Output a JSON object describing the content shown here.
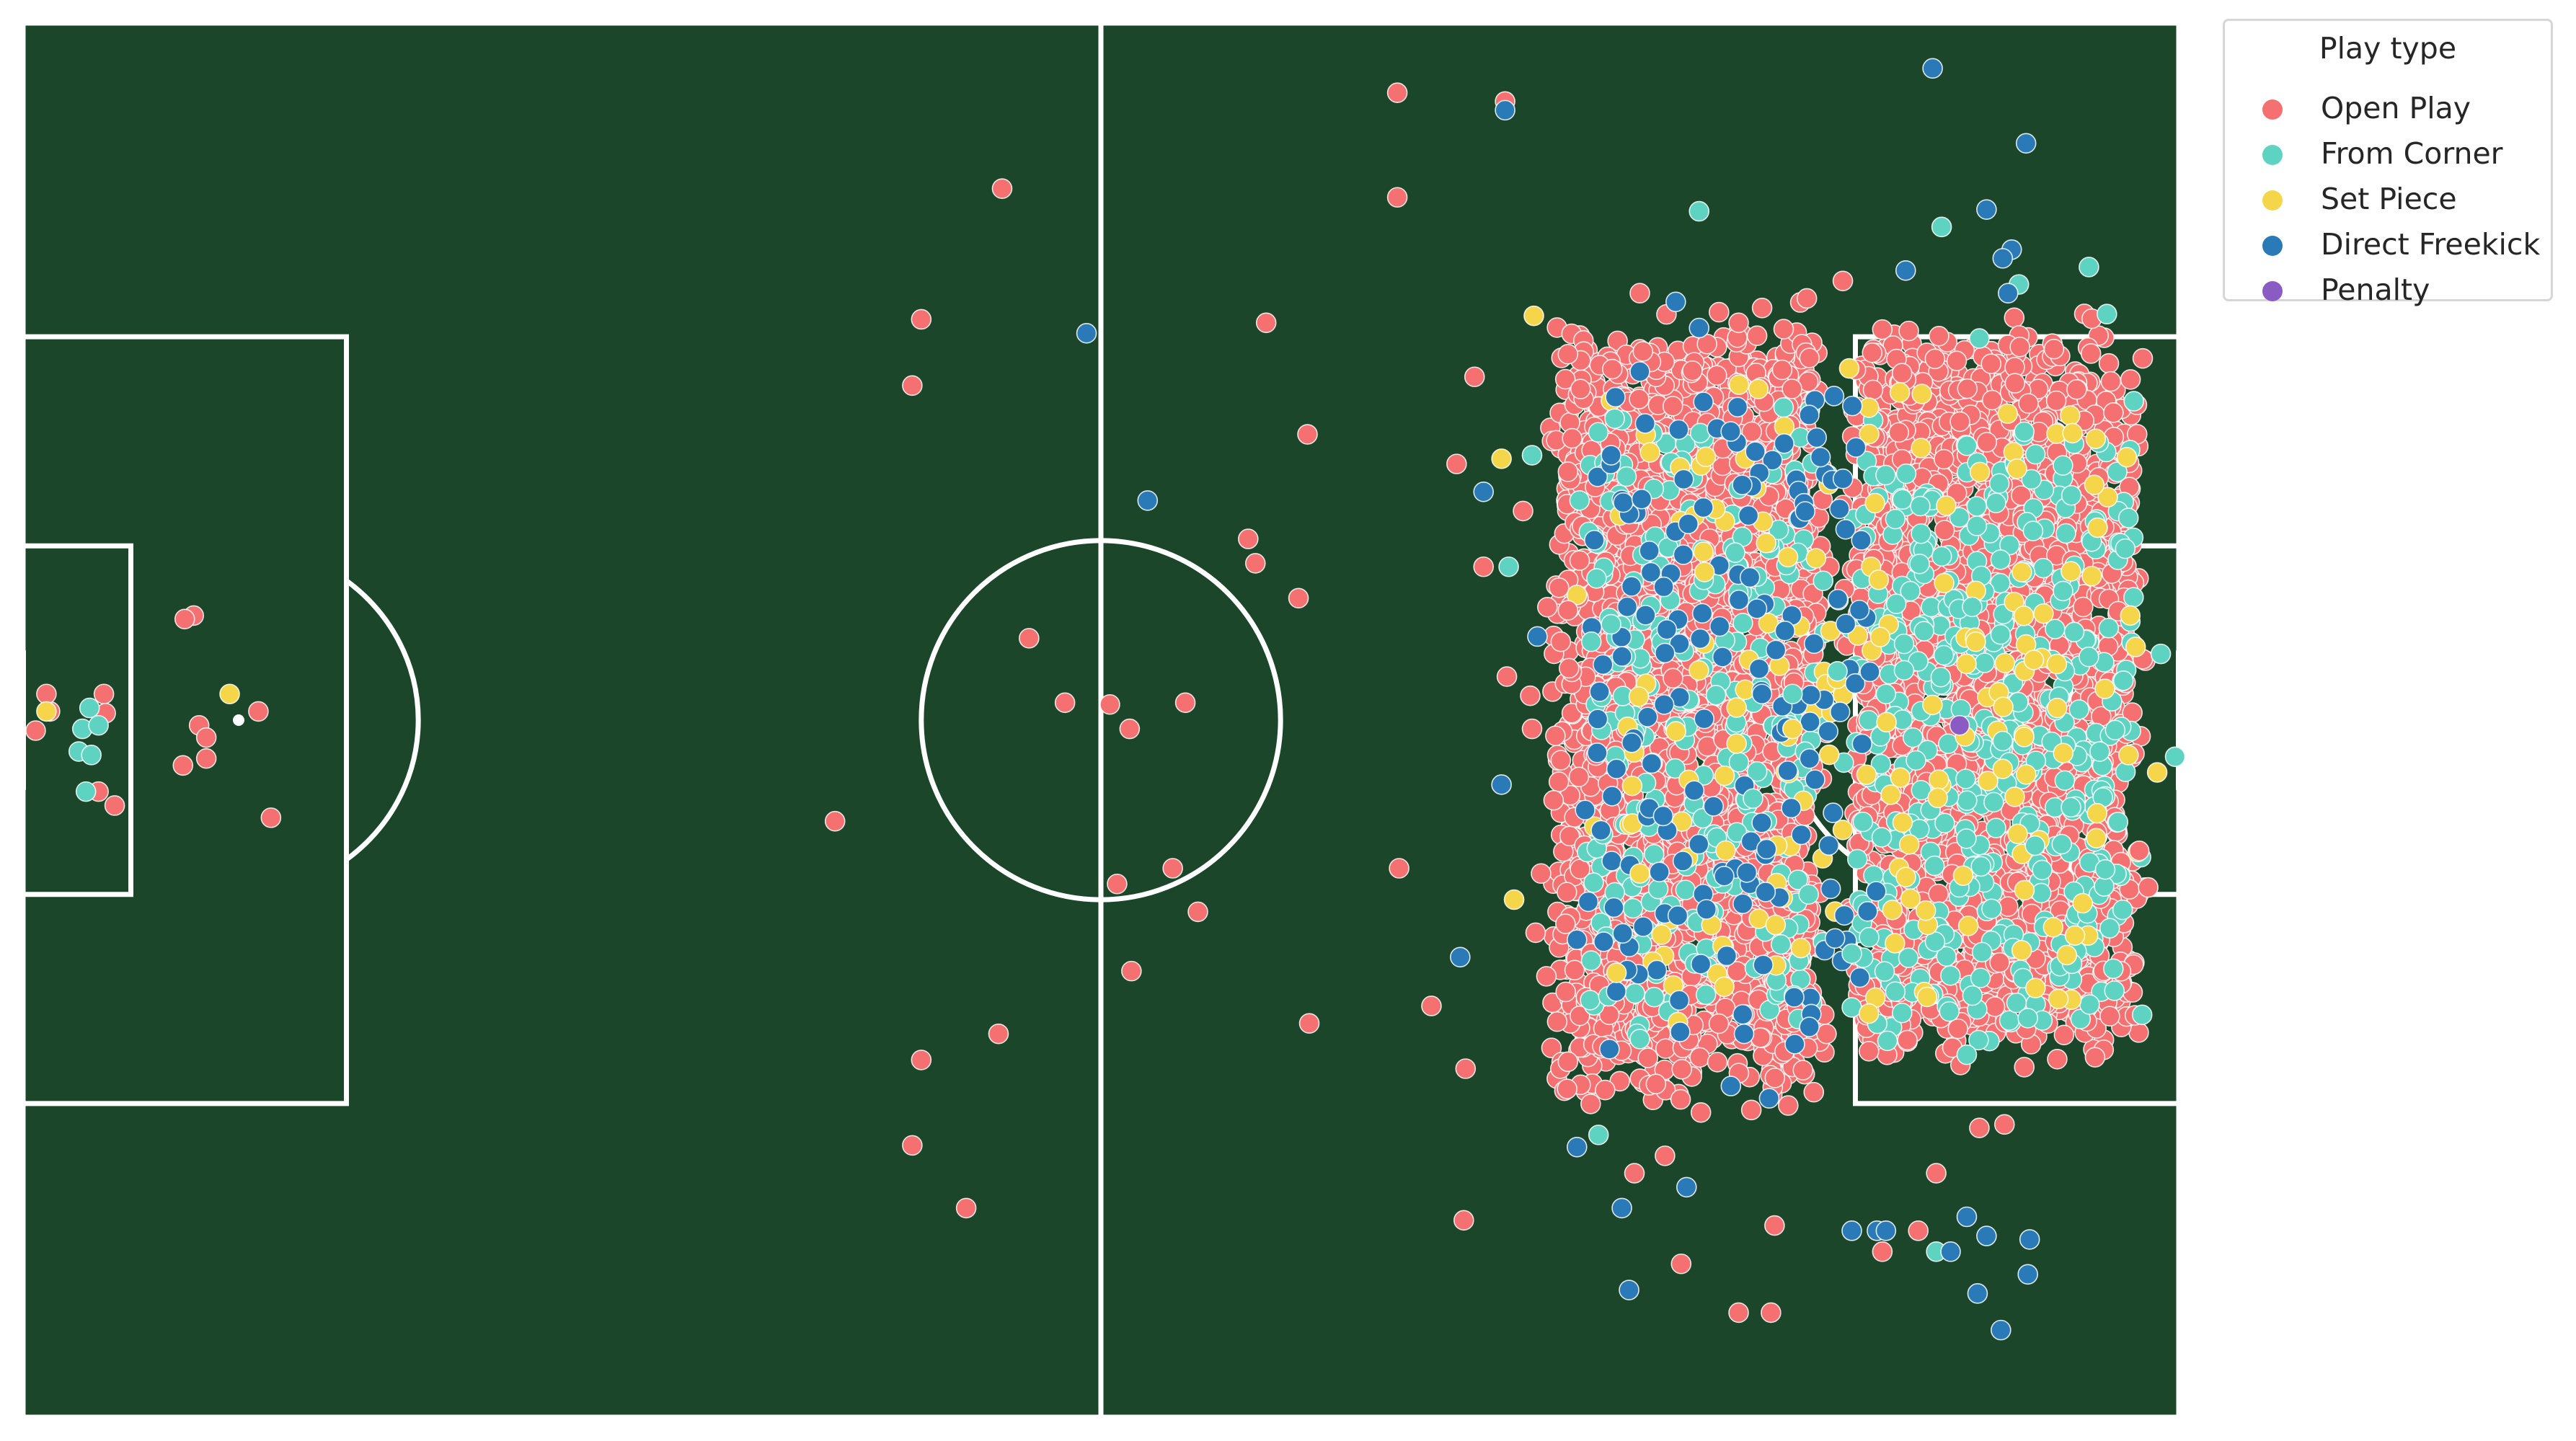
{
  "chart_data": {
    "type": "scatter",
    "pitch": {
      "length": 120,
      "width": 80,
      "background": "#1b4629",
      "line_color": "#ffffff"
    },
    "legend": {
      "title": "Play type",
      "placement": "right-outside-top"
    },
    "series": [
      {
        "name": "Open Play",
        "color": "#f57070",
        "approx_points": 5000
      },
      {
        "name": "From Corner",
        "color": "#5ed3c2",
        "approx_points": 700
      },
      {
        "name": "Set Piece",
        "color": "#f5d54a",
        "approx_points": 200
      },
      {
        "name": "Direct Freekick",
        "color": "#2b7ab8",
        "approx_points": 220
      },
      {
        "name": "Penalty",
        "color": "#8a5bc3",
        "approx_points": 1
      }
    ],
    "points": {
      "Open Play": [
        [
          76.5,
          4
        ],
        [
          76.5,
          10
        ],
        [
          82.5,
          4.5
        ],
        [
          69.2,
          17.2
        ],
        [
          71.5,
          23.6
        ],
        [
          68.2,
          29.6
        ],
        [
          68.6,
          31
        ],
        [
          71,
          33
        ],
        [
          54.5,
          9.5
        ],
        [
          50,
          17
        ],
        [
          49.5,
          20.8
        ],
        [
          56,
          35.3
        ],
        [
          58,
          39
        ],
        [
          61.6,
          40.5
        ],
        [
          64.7,
          39
        ],
        [
          60.5,
          39.1
        ],
        [
          45.2,
          45.8
        ],
        [
          54.3,
          58
        ],
        [
          60.9,
          49.4
        ],
        [
          61.7,
          54.4
        ],
        [
          64,
          48.5
        ],
        [
          65.4,
          51
        ],
        [
          71.6,
          57.4
        ],
        [
          50,
          59.5
        ],
        [
          49.5,
          64.4
        ],
        [
          52.5,
          68
        ],
        [
          76.6,
          48.5
        ],
        [
          78.4,
          56.4
        ],
        [
          80.3,
          60
        ],
        [
          80.2,
          68.7
        ],
        [
          79.8,
          25.3
        ],
        [
          80.8,
          20.3
        ],
        [
          81.3,
          31.2
        ],
        [
          83.5,
          28
        ],
        [
          86,
          19
        ],
        [
          86.7,
          21
        ],
        [
          82.6,
          37.5
        ],
        [
          84,
          40.5
        ],
        [
          91.4,
          65
        ],
        [
          95.5,
          74
        ],
        [
          92.3,
          71.2
        ],
        [
          89.7,
          66
        ],
        [
          97.5,
          69
        ],
        [
          97.3,
          74
        ],
        [
          105.5,
          69.3
        ],
        [
          103.5,
          70.5
        ],
        [
          106.5,
          66
        ],
        [
          90,
          15.5
        ],
        [
          95.5,
          17.2
        ],
        [
          99.3,
          15.8
        ],
        [
          101.3,
          14.8
        ],
        [
          108.9,
          63.4
        ],
        [
          110.3,
          63.2
        ],
        [
          117.8,
          47.5
        ],
        [
          118.3,
          49.6
        ],
        [
          118,
          36.5
        ],
        [
          1.5,
          39.5
        ],
        [
          0.7,
          40.6
        ],
        [
          1.3,
          38.5
        ],
        [
          4.5,
          38.5
        ],
        [
          4.6,
          39.6
        ],
        [
          4.2,
          44.1
        ],
        [
          5.1,
          44.9
        ],
        [
          9.5,
          34
        ],
        [
          9,
          34.2
        ],
        [
          9.8,
          40.3
        ],
        [
          10.2,
          41
        ],
        [
          10.2,
          42.2
        ],
        [
          8.9,
          42.6
        ],
        [
          13.1,
          39.5
        ],
        [
          13.8,
          45.6
        ],
        [
          85.5,
          32.4
        ],
        [
          85.6,
          35.5
        ],
        [
          85.3,
          40.9
        ],
        [
          85.6,
          42.3
        ],
        [
          85.2,
          44.6
        ],
        [
          84.5,
          48.8
        ],
        [
          84.2,
          52.2
        ],
        [
          84.8,
          54.7
        ],
        [
          85.4,
          57.3
        ],
        [
          86,
          59.6
        ],
        [
          86,
          33.7
        ],
        [
          83.9,
          38.6
        ]
      ],
      "From Corner": [
        [
          93.3,
          10.8
        ],
        [
          106.8,
          11.7
        ],
        [
          108.9,
          18.1
        ],
        [
          111.1,
          15
        ],
        [
          115,
          14
        ],
        [
          116,
          16.7
        ],
        [
          117.5,
          21.7
        ],
        [
          117.2,
          28.4
        ],
        [
          119,
          36.2
        ],
        [
          119.8,
          42.1
        ],
        [
          115.6,
          41.8
        ],
        [
          112.4,
          48.6
        ],
        [
          110.2,
          41.2
        ],
        [
          106.5,
          70.5
        ],
        [
          90,
          58.3
        ],
        [
          87.7,
          63.8
        ],
        [
          84,
          24.8
        ],
        [
          82.7,
          31.2
        ],
        [
          89,
          22.8
        ],
        [
          88.6,
          22.7
        ],
        [
          87.3,
          35.5
        ],
        [
          88.4,
          34.5
        ],
        [
          3.7,
          39.3
        ],
        [
          3.3,
          40.5
        ],
        [
          4.2,
          40.3
        ],
        [
          3.1,
          41.8
        ],
        [
          3.8,
          42
        ],
        [
          3.5,
          44.1
        ],
        [
          98.5,
          38.5
        ],
        [
          101,
          37.2
        ],
        [
          103.7,
          38.5
        ],
        [
          105.2,
          41
        ],
        [
          108.5,
          33.5
        ],
        [
          112,
          47.2
        ],
        [
          114,
          45
        ],
        [
          96.3,
          44.5
        ],
        [
          99.4,
          50
        ],
        [
          101.8,
          53.4
        ],
        [
          104.6,
          56.8
        ],
        [
          108.2,
          59.2
        ],
        [
          111.6,
          57.1
        ]
      ],
      "Set Piece": [
        [
          84.1,
          16.8
        ],
        [
          82.3,
          25
        ],
        [
          83,
          50.3
        ],
        [
          11.5,
          38.5
        ],
        [
          1.3,
          39.5
        ],
        [
          108.7,
          35.5
        ],
        [
          110.2,
          42.8
        ],
        [
          117.3,
          34
        ],
        [
          117.6,
          35.8
        ],
        [
          115.3,
          26.5
        ],
        [
          98.5,
          40.5
        ],
        [
          101.3,
          46.3
        ],
        [
          93.6,
          31.5
        ],
        [
          96.6,
          21
        ],
        [
          104.2,
          52.8
        ],
        [
          90,
          48.8
        ],
        [
          94.7,
          55.3
        ],
        [
          88.7,
          54.5
        ],
        [
          113.3,
          56
        ],
        [
          118.8,
          43
        ]
      ],
      "Direct Freekick": [
        [
          82.5,
          5
        ],
        [
          106.3,
          2.6
        ],
        [
          111.5,
          6.9
        ],
        [
          109.3,
          10.7
        ],
        [
          110.7,
          13
        ],
        [
          110.2,
          13.5
        ],
        [
          104.8,
          14.2
        ],
        [
          110.5,
          15.5
        ],
        [
          92,
          16
        ],
        [
          93.3,
          17.5
        ],
        [
          59.2,
          17.8
        ],
        [
          62.6,
          27.4
        ],
        [
          81.3,
          26.9
        ],
        [
          82.3,
          43.7
        ],
        [
          80,
          53.6
        ],
        [
          88.4,
          24.8
        ],
        [
          90,
          20
        ],
        [
          84.3,
          35.2
        ],
        [
          86.5,
          52.6
        ],
        [
          86.5,
          64.5
        ],
        [
          89,
          68
        ],
        [
          92.6,
          66.8
        ],
        [
          101.8,
          69.3
        ],
        [
          103.2,
          69.3
        ],
        [
          103.7,
          69.3
        ],
        [
          109.3,
          69.6
        ],
        [
          108.2,
          68.5
        ],
        [
          111.7,
          69.8
        ],
        [
          111.6,
          71.8
        ],
        [
          107.3,
          70.5
        ],
        [
          108.8,
          72.9
        ],
        [
          89.4,
          72.7
        ],
        [
          110.1,
          75
        ],
        [
          95.7,
          26.5
        ],
        [
          91.5,
          34.8
        ],
        [
          89.3,
          33.5
        ],
        [
          96.8,
          38.5
        ],
        [
          88.7,
          42.8
        ],
        [
          91.3,
          45.5
        ],
        [
          93.4,
          54
        ],
        [
          95.8,
          58
        ],
        [
          97.2,
          61.7
        ]
      ],
      "Penalty": [
        [
          107.8,
          40.3
        ]
      ]
    },
    "clusters": [
      {
        "series": "Open Play",
        "count": 2400,
        "x_range": [
          84.5,
          101
        ],
        "y_range": [
          15.5,
          63.5
        ]
      },
      {
        "series": "Open Play",
        "count": 2300,
        "x_range": [
          101,
          118.5
        ],
        "y_range": [
          16,
          61
        ]
      },
      {
        "series": "From Corner",
        "count": 260,
        "x_range": [
          86,
          101
        ],
        "y_range": [
          20,
          60
        ]
      },
      {
        "series": "From Corner",
        "count": 420,
        "x_range": [
          101,
          118.5
        ],
        "y_range": [
          22,
          60
        ]
      },
      {
        "series": "Set Piece",
        "count": 170,
        "x_range": [
          86,
          118.5
        ],
        "y_range": [
          18,
          60
        ]
      },
      {
        "series": "Direct Freekick",
        "count": 170,
        "x_range": [
          86,
          104
        ],
        "y_range": [
          18,
          62
        ]
      }
    ]
  }
}
